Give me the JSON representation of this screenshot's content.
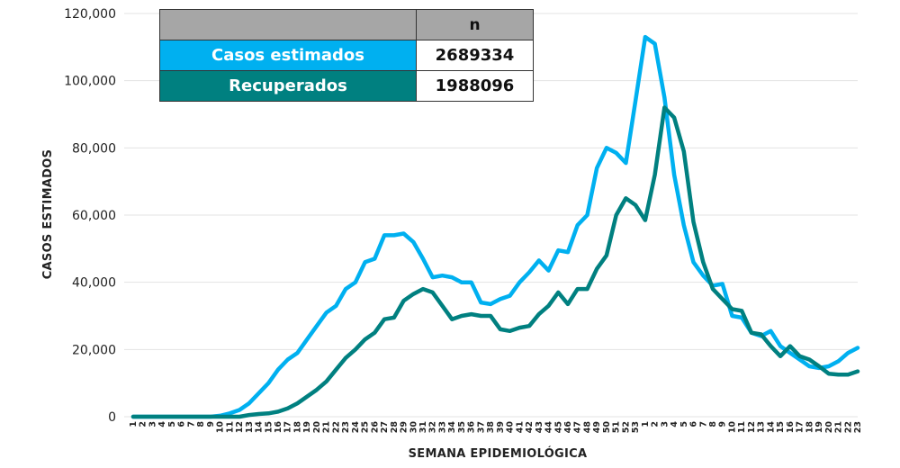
{
  "legend": {
    "header": "n",
    "rows": [
      {
        "label": "Casos estimados",
        "value": "2689334",
        "color": "#00b0f0"
      },
      {
        "label": "Recuperados",
        "value": "1988096",
        "color": "#008080"
      }
    ]
  },
  "chart_data": {
    "type": "line",
    "xlabel": "SEMANA EPIDEMIOLÓGICA",
    "ylabel": "CASOS ESTIMADOS",
    "ylim": [
      0,
      120000
    ],
    "yticks": [
      0,
      20000,
      40000,
      60000,
      80000,
      100000,
      120000
    ],
    "ytick_labels": [
      "0",
      "20,000",
      "40,000",
      "60,000",
      "80,000",
      "100,000",
      "120,000"
    ],
    "grid": true,
    "categories": [
      "1",
      "2",
      "3",
      "4",
      "5",
      "6",
      "7",
      "8",
      "9",
      "10",
      "11",
      "12",
      "13",
      "14",
      "15",
      "16",
      "17",
      "18",
      "19",
      "20",
      "21",
      "22",
      "23",
      "24",
      "25",
      "26",
      "27",
      "28",
      "29",
      "30",
      "31",
      "32",
      "33",
      "34",
      "35",
      "36",
      "37",
      "38",
      "39",
      "40",
      "41",
      "42",
      "43",
      "44",
      "45",
      "46",
      "47",
      "48",
      "49",
      "50",
      "51",
      "52",
      "53",
      "1",
      "2",
      "3",
      "4",
      "5",
      "6",
      "7",
      "8",
      "9",
      "10",
      "11",
      "12",
      "13",
      "14",
      "15",
      "16",
      "17",
      "18",
      "19",
      "20",
      "21",
      "22",
      "23"
    ],
    "series": [
      {
        "name": "Casos estimados",
        "color": "#00b0f0",
        "values": [
          0,
          0,
          0,
          0,
          0,
          0,
          0,
          0,
          0,
          300,
          1000,
          2000,
          4000,
          7000,
          10000,
          14000,
          17000,
          19000,
          23000,
          27000,
          31000,
          33000,
          38000,
          40000,
          46000,
          47000,
          54000,
          54000,
          54500,
          52000,
          47000,
          41500,
          42000,
          41500,
          40000,
          40000,
          34000,
          33500,
          35000,
          36000,
          40000,
          43000,
          46500,
          43500,
          49500,
          49000,
          57000,
          60000,
          74000,
          80000,
          78500,
          75500,
          94000,
          113000,
          111000,
          95000,
          72000,
          57000,
          46000,
          42000,
          39000,
          39500,
          30000,
          29500,
          25000,
          24000,
          25500,
          21000,
          19000,
          17000,
          15000,
          14500,
          15000,
          16500,
          19000,
          20500
        ]
      },
      {
        "name": "Recuperados",
        "color": "#008080",
        "values": [
          0,
          0,
          0,
          0,
          0,
          0,
          0,
          0,
          0,
          0,
          0,
          0,
          500,
          800,
          1000,
          1500,
          2500,
          4000,
          6000,
          8000,
          10500,
          14000,
          17500,
          20000,
          23000,
          25000,
          29000,
          29500,
          34500,
          36500,
          38000,
          37000,
          33000,
          29000,
          30000,
          30500,
          30000,
          30000,
          26000,
          25500,
          26500,
          27000,
          30500,
          33000,
          37000,
          33500,
          38000,
          38000,
          44000,
          48000,
          60000,
          65000,
          63000,
          58500,
          72000,
          92000,
          89000,
          79000,
          58000,
          46000,
          38000,
          35000,
          32000,
          31500,
          25000,
          24500,
          21000,
          18000,
          21000,
          18000,
          17000,
          15000,
          12800,
          12500,
          12500,
          13500
        ]
      }
    ]
  }
}
